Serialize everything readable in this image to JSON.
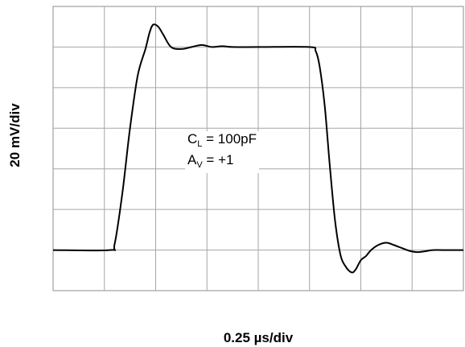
{
  "chart_data": {
    "type": "line",
    "xlabel": "0.25 µs/div",
    "ylabel": "20 mV/div",
    "x_divisions": 8,
    "y_divisions": 7,
    "grid": true,
    "annotations": [
      {
        "symbol": "C",
        "subscript": "L",
        "value": "= 100pF"
      },
      {
        "symbol": "A",
        "subscript": "V",
        "value": "= +1"
      }
    ],
    "series": [
      {
        "x": [
          0,
          1.1,
          1.2,
          1.35,
          1.5,
          1.65,
          1.8,
          1.88,
          1.95,
          2.05,
          2.15,
          2.3,
          2.5,
          2.7,
          2.9,
          3.1,
          3.3,
          3.5,
          4.0,
          5.0,
          5.12,
          5.2,
          5.3,
          5.4,
          5.5,
          5.6,
          5.7,
          5.82,
          5.9,
          6.0,
          6.1,
          6.2,
          6.35,
          6.5,
          6.65,
          6.8,
          6.95,
          7.1,
          7.25,
          7.4,
          7.6,
          8.0
        ],
        "y": [
          1.0,
          1.0,
          1.15,
          2.4,
          4.0,
          5.3,
          5.95,
          6.35,
          6.55,
          6.5,
          6.3,
          6.0,
          5.95,
          6.0,
          6.05,
          6.0,
          6.02,
          6.0,
          6.0,
          6.0,
          5.9,
          5.5,
          4.5,
          3.0,
          1.7,
          0.9,
          0.6,
          0.45,
          0.52,
          0.75,
          0.85,
          1.0,
          1.13,
          1.18,
          1.12,
          1.05,
          0.98,
          0.95,
          0.97,
          1.0,
          1.0,
          1.0
        ]
      }
    ]
  }
}
